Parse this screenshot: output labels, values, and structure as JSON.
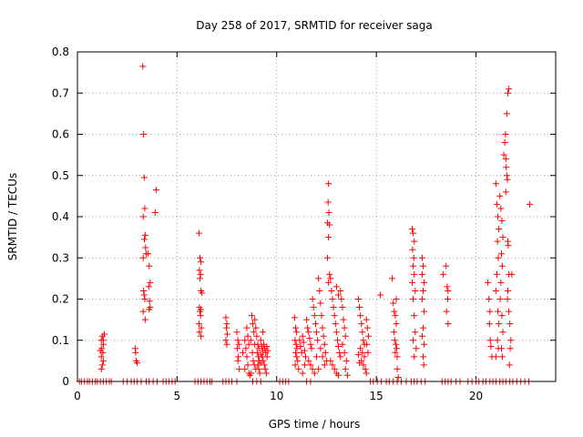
{
  "chart_data": {
    "type": "scatter",
    "title": "Day 258 of 2017, SRMTID for receiver saga",
    "xlabel": "GPS time / hours",
    "ylabel": "SRMTID / TECUs",
    "xlim": [
      0,
      24
    ],
    "ylim": [
      0,
      0.8
    ],
    "xticks": [
      0,
      5,
      10,
      15,
      20
    ],
    "yticks": [
      0,
      0.1,
      0.2,
      0.3,
      0.4,
      0.5,
      0.6,
      0.7,
      0.8
    ],
    "xtick_labels": [
      "0",
      "5",
      "10",
      "15",
      "20"
    ],
    "ytick_labels": [
      "0",
      "0.1",
      "0.2",
      "0.3",
      "0.4",
      "0.5",
      "0.6",
      "0.7",
      "0.8"
    ],
    "grid": true,
    "marker": "plus",
    "color": "#ff0000",
    "points": [
      [
        0.1,
        0
      ],
      [
        0.2,
        0
      ],
      [
        0.35,
        0
      ],
      [
        0.5,
        0
      ],
      [
        0.6,
        0
      ],
      [
        0.75,
        0
      ],
      [
        0.9,
        0
      ],
      [
        1.0,
        0
      ],
      [
        1.15,
        0
      ],
      [
        1.3,
        0
      ],
      [
        1.45,
        0
      ],
      [
        1.6,
        0
      ],
      [
        1.7,
        0
      ],
      [
        2.3,
        0
      ],
      [
        2.5,
        0
      ],
      [
        2.7,
        0
      ],
      [
        2.85,
        0
      ],
      [
        3.0,
        0
      ],
      [
        3.2,
        0
      ],
      [
        3.45,
        0
      ],
      [
        3.6,
        0
      ],
      [
        3.8,
        0
      ],
      [
        4.0,
        0
      ],
      [
        4.3,
        0
      ],
      [
        4.45,
        0
      ],
      [
        4.6,
        0
      ],
      [
        4.75,
        0
      ],
      [
        4.9,
        0
      ],
      [
        5.9,
        0
      ],
      [
        6.05,
        0
      ],
      [
        6.2,
        0
      ],
      [
        6.35,
        0
      ],
      [
        6.5,
        0
      ],
      [
        6.65,
        0
      ],
      [
        6.75,
        0
      ],
      [
        7.3,
        0
      ],
      [
        7.45,
        0
      ],
      [
        7.6,
        0
      ],
      [
        7.75,
        0
      ],
      [
        8.0,
        0
      ],
      [
        8.8,
        0
      ],
      [
        9.0,
        0
      ],
      [
        9.2,
        0
      ],
      [
        10.15,
        0
      ],
      [
        10.3,
        0
      ],
      [
        10.45,
        0
      ],
      [
        10.6,
        0
      ],
      [
        11.5,
        0
      ],
      [
        11.7,
        0
      ],
      [
        14.7,
        0
      ],
      [
        14.85,
        0
      ],
      [
        15.05,
        0
      ],
      [
        15.25,
        0
      ],
      [
        15.5,
        0
      ],
      [
        15.65,
        0
      ],
      [
        15.85,
        0
      ],
      [
        16.05,
        0
      ],
      [
        16.25,
        0
      ],
      [
        16.5,
        0
      ],
      [
        16.75,
        0
      ],
      [
        16.9,
        0
      ],
      [
        17.05,
        0
      ],
      [
        17.25,
        0
      ],
      [
        17.45,
        0
      ],
      [
        18.3,
        0
      ],
      [
        18.45,
        0
      ],
      [
        18.6,
        0
      ],
      [
        18.75,
        0
      ],
      [
        19.0,
        0
      ],
      [
        19.2,
        0
      ],
      [
        19.6,
        0
      ],
      [
        19.8,
        0
      ],
      [
        20.0,
        0
      ],
      [
        20.15,
        0
      ],
      [
        20.35,
        0
      ],
      [
        20.5,
        0
      ],
      [
        20.7,
        0
      ],
      [
        20.85,
        0
      ],
      [
        21.0,
        0
      ],
      [
        21.2,
        0
      ],
      [
        21.35,
        0
      ],
      [
        21.5,
        0
      ],
      [
        21.7,
        0
      ],
      [
        21.85,
        0
      ],
      [
        22.05,
        0
      ],
      [
        22.25,
        0
      ],
      [
        22.45,
        0
      ],
      [
        22.65,
        0
      ],
      [
        1.2,
        0.1
      ],
      [
        1.25,
        0.11
      ],
      [
        1.3,
        0.09
      ],
      [
        1.22,
        0.08
      ],
      [
        1.28,
        0.07
      ],
      [
        1.2,
        0.06
      ],
      [
        1.3,
        0.05
      ],
      [
        1.25,
        0.04
      ],
      [
        1.2,
        0.03
      ],
      [
        1.3,
        0.1
      ],
      [
        1.35,
        0.115
      ],
      [
        1.15,
        0.075
      ],
      [
        2.9,
        0.08
      ],
      [
        2.95,
        0.05
      ],
      [
        3.0,
        0.045
      ],
      [
        2.92,
        0.07
      ],
      [
        3.28,
        0.765
      ],
      [
        3.32,
        0.6
      ],
      [
        3.35,
        0.495
      ],
      [
        3.38,
        0.42
      ],
      [
        3.3,
        0.4
      ],
      [
        3.4,
        0.355
      ],
      [
        3.36,
        0.345
      ],
      [
        3.42,
        0.325
      ],
      [
        3.3,
        0.3
      ],
      [
        3.45,
        0.31
      ],
      [
        3.32,
        0.22
      ],
      [
        3.38,
        0.2
      ],
      [
        3.3,
        0.17
      ],
      [
        3.4,
        0.15
      ],
      [
        3.35,
        0.21
      ],
      [
        3.6,
        0.28
      ],
      [
        3.65,
        0.24
      ],
      [
        3.58,
        0.23
      ],
      [
        3.62,
        0.195
      ],
      [
        3.6,
        0.175
      ],
      [
        3.65,
        0.18
      ],
      [
        3.55,
        0.31
      ],
      [
        3.95,
        0.465
      ],
      [
        3.9,
        0.41
      ],
      [
        6.1,
        0.36
      ],
      [
        6.15,
        0.3
      ],
      [
        6.2,
        0.29
      ],
      [
        6.12,
        0.27
      ],
      [
        6.18,
        0.26
      ],
      [
        6.15,
        0.25
      ],
      [
        6.2,
        0.22
      ],
      [
        6.25,
        0.215
      ],
      [
        6.12,
        0.18
      ],
      [
        6.2,
        0.175
      ],
      [
        6.15,
        0.17
      ],
      [
        6.18,
        0.16
      ],
      [
        6.1,
        0.14
      ],
      [
        6.22,
        0.13
      ],
      [
        6.12,
        0.12
      ],
      [
        6.2,
        0.11
      ],
      [
        7.45,
        0.155
      ],
      [
        7.5,
        0.14
      ],
      [
        7.48,
        0.13
      ],
      [
        7.52,
        0.115
      ],
      [
        7.45,
        0.1
      ],
      [
        7.5,
        0.09
      ],
      [
        8.0,
        0.12
      ],
      [
        8.05,
        0.1
      ],
      [
        8.1,
        0.09
      ],
      [
        8.02,
        0.08
      ],
      [
        8.08,
        0.06
      ],
      [
        8.05,
        0.05
      ],
      [
        8.12,
        0.03
      ],
      [
        8.3,
        0.07
      ],
      [
        8.4,
        0.1
      ],
      [
        8.5,
        0.13
      ],
      [
        8.55,
        0.11
      ],
      [
        8.6,
        0.09
      ],
      [
        8.45,
        0.08
      ],
      [
        8.5,
        0.06
      ],
      [
        8.55,
        0.04
      ],
      [
        8.4,
        0.03
      ],
      [
        8.6,
        0.02
      ],
      [
        8.65,
        0.015
      ],
      [
        8.7,
        0.1
      ],
      [
        8.75,
        0.16
      ],
      [
        8.8,
        0.14
      ],
      [
        8.85,
        0.12
      ],
      [
        8.9,
        0.09
      ],
      [
        8.78,
        0.07
      ],
      [
        8.82,
        0.05
      ],
      [
        8.88,
        0.04
      ],
      [
        8.95,
        0.03
      ],
      [
        8.72,
        0.02
      ],
      [
        9.0,
        0.11
      ],
      [
        9.05,
        0.09
      ],
      [
        9.1,
        0.08
      ],
      [
        9.02,
        0.07
      ],
      [
        9.08,
        0.06
      ],
      [
        9.12,
        0.05
      ],
      [
        9.05,
        0.04
      ],
      [
        9.1,
        0.03
      ],
      [
        9.15,
        0.02
      ],
      [
        9.2,
        0.1
      ],
      [
        9.25,
        0.085
      ],
      [
        9.3,
        0.075
      ],
      [
        9.22,
        0.065
      ],
      [
        9.28,
        0.06
      ],
      [
        9.35,
        0.09
      ],
      [
        9.4,
        0.08
      ],
      [
        9.45,
        0.07
      ],
      [
        9.32,
        0.05
      ],
      [
        9.38,
        0.04
      ],
      [
        9.42,
        0.03
      ],
      [
        9.48,
        0.02
      ],
      [
        9.3,
        0.12
      ],
      [
        9.5,
        0.085
      ],
      [
        9.55,
        0.075
      ],
      [
        9.52,
        0.06
      ],
      [
        9.2,
        0.045
      ],
      [
        8.9,
        0.15
      ],
      [
        8.95,
        0.13
      ],
      [
        10.9,
        0.155
      ],
      [
        10.95,
        0.13
      ],
      [
        11.0,
        0.12
      ],
      [
        10.92,
        0.1
      ],
      [
        10.98,
        0.09
      ],
      [
        11.02,
        0.08
      ],
      [
        10.95,
        0.07
      ],
      [
        11.0,
        0.06
      ],
      [
        11.05,
        0.05
      ],
      [
        10.93,
        0.04
      ],
      [
        11.1,
        0.03
      ],
      [
        11.15,
        0.1
      ],
      [
        11.2,
        0.085
      ],
      [
        11.25,
        0.07
      ],
      [
        11.3,
        0.11
      ],
      [
        11.35,
        0.095
      ],
      [
        11.4,
        0.075
      ],
      [
        11.45,
        0.06
      ],
      [
        11.5,
        0.15
      ],
      [
        11.55,
        0.13
      ],
      [
        11.6,
        0.12
      ],
      [
        11.65,
        0.105
      ],
      [
        11.7,
        0.09
      ],
      [
        11.75,
        0.08
      ],
      [
        11.8,
        0.2
      ],
      [
        11.85,
        0.18
      ],
      [
        11.9,
        0.16
      ],
      [
        11.95,
        0.14
      ],
      [
        12.0,
        0.12
      ],
      [
        12.05,
        0.1
      ],
      [
        11.6,
        0.05
      ],
      [
        11.7,
        0.04
      ],
      [
        11.8,
        0.03
      ],
      [
        11.9,
        0.02
      ],
      [
        12.1,
        0.25
      ],
      [
        12.15,
        0.22
      ],
      [
        12.2,
        0.19
      ],
      [
        12.25,
        0.16
      ],
      [
        12.3,
        0.13
      ],
      [
        12.35,
        0.11
      ],
      [
        12.4,
        0.09
      ],
      [
        12.45,
        0.07
      ],
      [
        12.5,
        0.05
      ],
      [
        12.2,
        0.08
      ],
      [
        12.3,
        0.06
      ],
      [
        12.4,
        0.04
      ],
      [
        12.0,
        0.06
      ],
      [
        12.1,
        0.03
      ],
      [
        11.3,
        0.02
      ],
      [
        11.4,
        0.04
      ],
      [
        12.6,
        0.48
      ],
      [
        12.58,
        0.435
      ],
      [
        12.62,
        0.41
      ],
      [
        12.55,
        0.385
      ],
      [
        12.65,
        0.38
      ],
      [
        12.6,
        0.35
      ],
      [
        12.55,
        0.3
      ],
      [
        12.65,
        0.26
      ],
      [
        12.6,
        0.24
      ],
      [
        12.7,
        0.25
      ],
      [
        12.75,
        0.22
      ],
      [
        12.8,
        0.2
      ],
      [
        12.85,
        0.18
      ],
      [
        12.9,
        0.16
      ],
      [
        12.95,
        0.14
      ],
      [
        13.0,
        0.12
      ],
      [
        13.05,
        0.1
      ],
      [
        13.1,
        0.085
      ],
      [
        13.15,
        0.07
      ],
      [
        13.2,
        0.06
      ],
      [
        12.7,
        0.05
      ],
      [
        12.8,
        0.04
      ],
      [
        12.9,
        0.03
      ],
      [
        13.0,
        0.02
      ],
      [
        13.1,
        0.015
      ],
      [
        13.2,
        0.22
      ],
      [
        13.25,
        0.2
      ],
      [
        13.3,
        0.18
      ],
      [
        13.35,
        0.15
      ],
      [
        13.4,
        0.13
      ],
      [
        13.45,
        0.11
      ],
      [
        13.3,
        0.09
      ],
      [
        13.4,
        0.07
      ],
      [
        13.5,
        0.05
      ],
      [
        13.45,
        0.03
      ],
      [
        13.55,
        0.015
      ],
      [
        13.0,
        0.23
      ],
      [
        13.1,
        0.21
      ],
      [
        14.1,
        0.2
      ],
      [
        14.15,
        0.18
      ],
      [
        14.2,
        0.16
      ],
      [
        14.25,
        0.14
      ],
      [
        14.3,
        0.12
      ],
      [
        14.35,
        0.1
      ],
      [
        14.4,
        0.09
      ],
      [
        14.2,
        0.08
      ],
      [
        14.3,
        0.07
      ],
      [
        14.4,
        0.06
      ],
      [
        14.25,
        0.05
      ],
      [
        14.35,
        0.04
      ],
      [
        14.45,
        0.03
      ],
      [
        14.5,
        0.02
      ],
      [
        14.5,
        0.15
      ],
      [
        14.55,
        0.13
      ],
      [
        14.6,
        0.11
      ],
      [
        14.52,
        0.09
      ],
      [
        14.58,
        0.07
      ],
      [
        14.1,
        0.065
      ],
      [
        14.15,
        0.045
      ],
      [
        15.2,
        0.21
      ],
      [
        15.8,
        0.25
      ],
      [
        15.85,
        0.19
      ],
      [
        15.9,
        0.17
      ],
      [
        15.95,
        0.16
      ],
      [
        16.0,
        0.14
      ],
      [
        15.88,
        0.12
      ],
      [
        15.92,
        0.1
      ],
      [
        15.98,
        0.09
      ],
      [
        16.02,
        0.08
      ],
      [
        15.95,
        0.07
      ],
      [
        16.05,
        0.06
      ],
      [
        16.0,
        0.2
      ],
      [
        16.05,
        0.03
      ],
      [
        16.1,
        0.01
      ],
      [
        16.8,
        0.37
      ],
      [
        16.85,
        0.36
      ],
      [
        16.9,
        0.34
      ],
      [
        16.82,
        0.32
      ],
      [
        16.88,
        0.3
      ],
      [
        16.85,
        0.28
      ],
      [
        16.9,
        0.26
      ],
      [
        16.8,
        0.24
      ],
      [
        16.95,
        0.22
      ],
      [
        16.85,
        0.2
      ],
      [
        16.9,
        0.16
      ],
      [
        16.95,
        0.12
      ],
      [
        16.85,
        0.1
      ],
      [
        17.0,
        0.08
      ],
      [
        16.9,
        0.06
      ],
      [
        17.3,
        0.3
      ],
      [
        17.35,
        0.28
      ],
      [
        17.3,
        0.26
      ],
      [
        17.4,
        0.24
      ],
      [
        17.35,
        0.22
      ],
      [
        17.3,
        0.2
      ],
      [
        17.4,
        0.17
      ],
      [
        17.35,
        0.13
      ],
      [
        17.3,
        0.11
      ],
      [
        17.4,
        0.09
      ],
      [
        17.35,
        0.06
      ],
      [
        17.38,
        0.04
      ],
      [
        18.5,
        0.28
      ],
      [
        18.55,
        0.23
      ],
      [
        18.6,
        0.22
      ],
      [
        18.58,
        0.2
      ],
      [
        18.52,
        0.17
      ],
      [
        18.6,
        0.14
      ],
      [
        18.35,
        0.26
      ],
      [
        20.6,
        0.24
      ],
      [
        20.65,
        0.2
      ],
      [
        20.7,
        0.17
      ],
      [
        20.68,
        0.14
      ],
      [
        20.72,
        0.1
      ],
      [
        20.75,
        0.085
      ],
      [
        20.8,
        0.06
      ],
      [
        21.0,
        0.48
      ],
      [
        21.05,
        0.43
      ],
      [
        21.1,
        0.4
      ],
      [
        21.15,
        0.37
      ],
      [
        21.08,
        0.34
      ],
      [
        21.12,
        0.3
      ],
      [
        21.05,
        0.26
      ],
      [
        21.0,
        0.22
      ],
      [
        21.1,
        0.17
      ],
      [
        21.15,
        0.14
      ],
      [
        21.08,
        0.1
      ],
      [
        21.12,
        0.08
      ],
      [
        21.0,
        0.06
      ],
      [
        21.2,
        0.45
      ],
      [
        21.25,
        0.42
      ],
      [
        21.3,
        0.39
      ],
      [
        21.35,
        0.35
      ],
      [
        21.28,
        0.31
      ],
      [
        21.32,
        0.28
      ],
      [
        21.25,
        0.24
      ],
      [
        21.22,
        0.2
      ],
      [
        21.3,
        0.16
      ],
      [
        21.35,
        0.12
      ],
      [
        21.28,
        0.08
      ],
      [
        21.32,
        0.06
      ],
      [
        21.4,
        0.55
      ],
      [
        21.45,
        0.58
      ],
      [
        21.48,
        0.6
      ],
      [
        21.55,
        0.65
      ],
      [
        21.6,
        0.7
      ],
      [
        21.65,
        0.71
      ],
      [
        21.5,
        0.54
      ],
      [
        21.52,
        0.52
      ],
      [
        21.55,
        0.5
      ],
      [
        21.58,
        0.49
      ],
      [
        21.5,
        0.46
      ],
      [
        21.6,
        0.34
      ],
      [
        21.62,
        0.33
      ],
      [
        21.65,
        0.26
      ],
      [
        21.6,
        0.22
      ],
      [
        21.58,
        0.2
      ],
      [
        21.65,
        0.17
      ],
      [
        21.7,
        0.14
      ],
      [
        21.75,
        0.1
      ],
      [
        21.72,
        0.08
      ],
      [
        21.68,
        0.04
      ],
      [
        21.8,
        0.26
      ],
      [
        22.7,
        0.43
      ]
    ]
  }
}
